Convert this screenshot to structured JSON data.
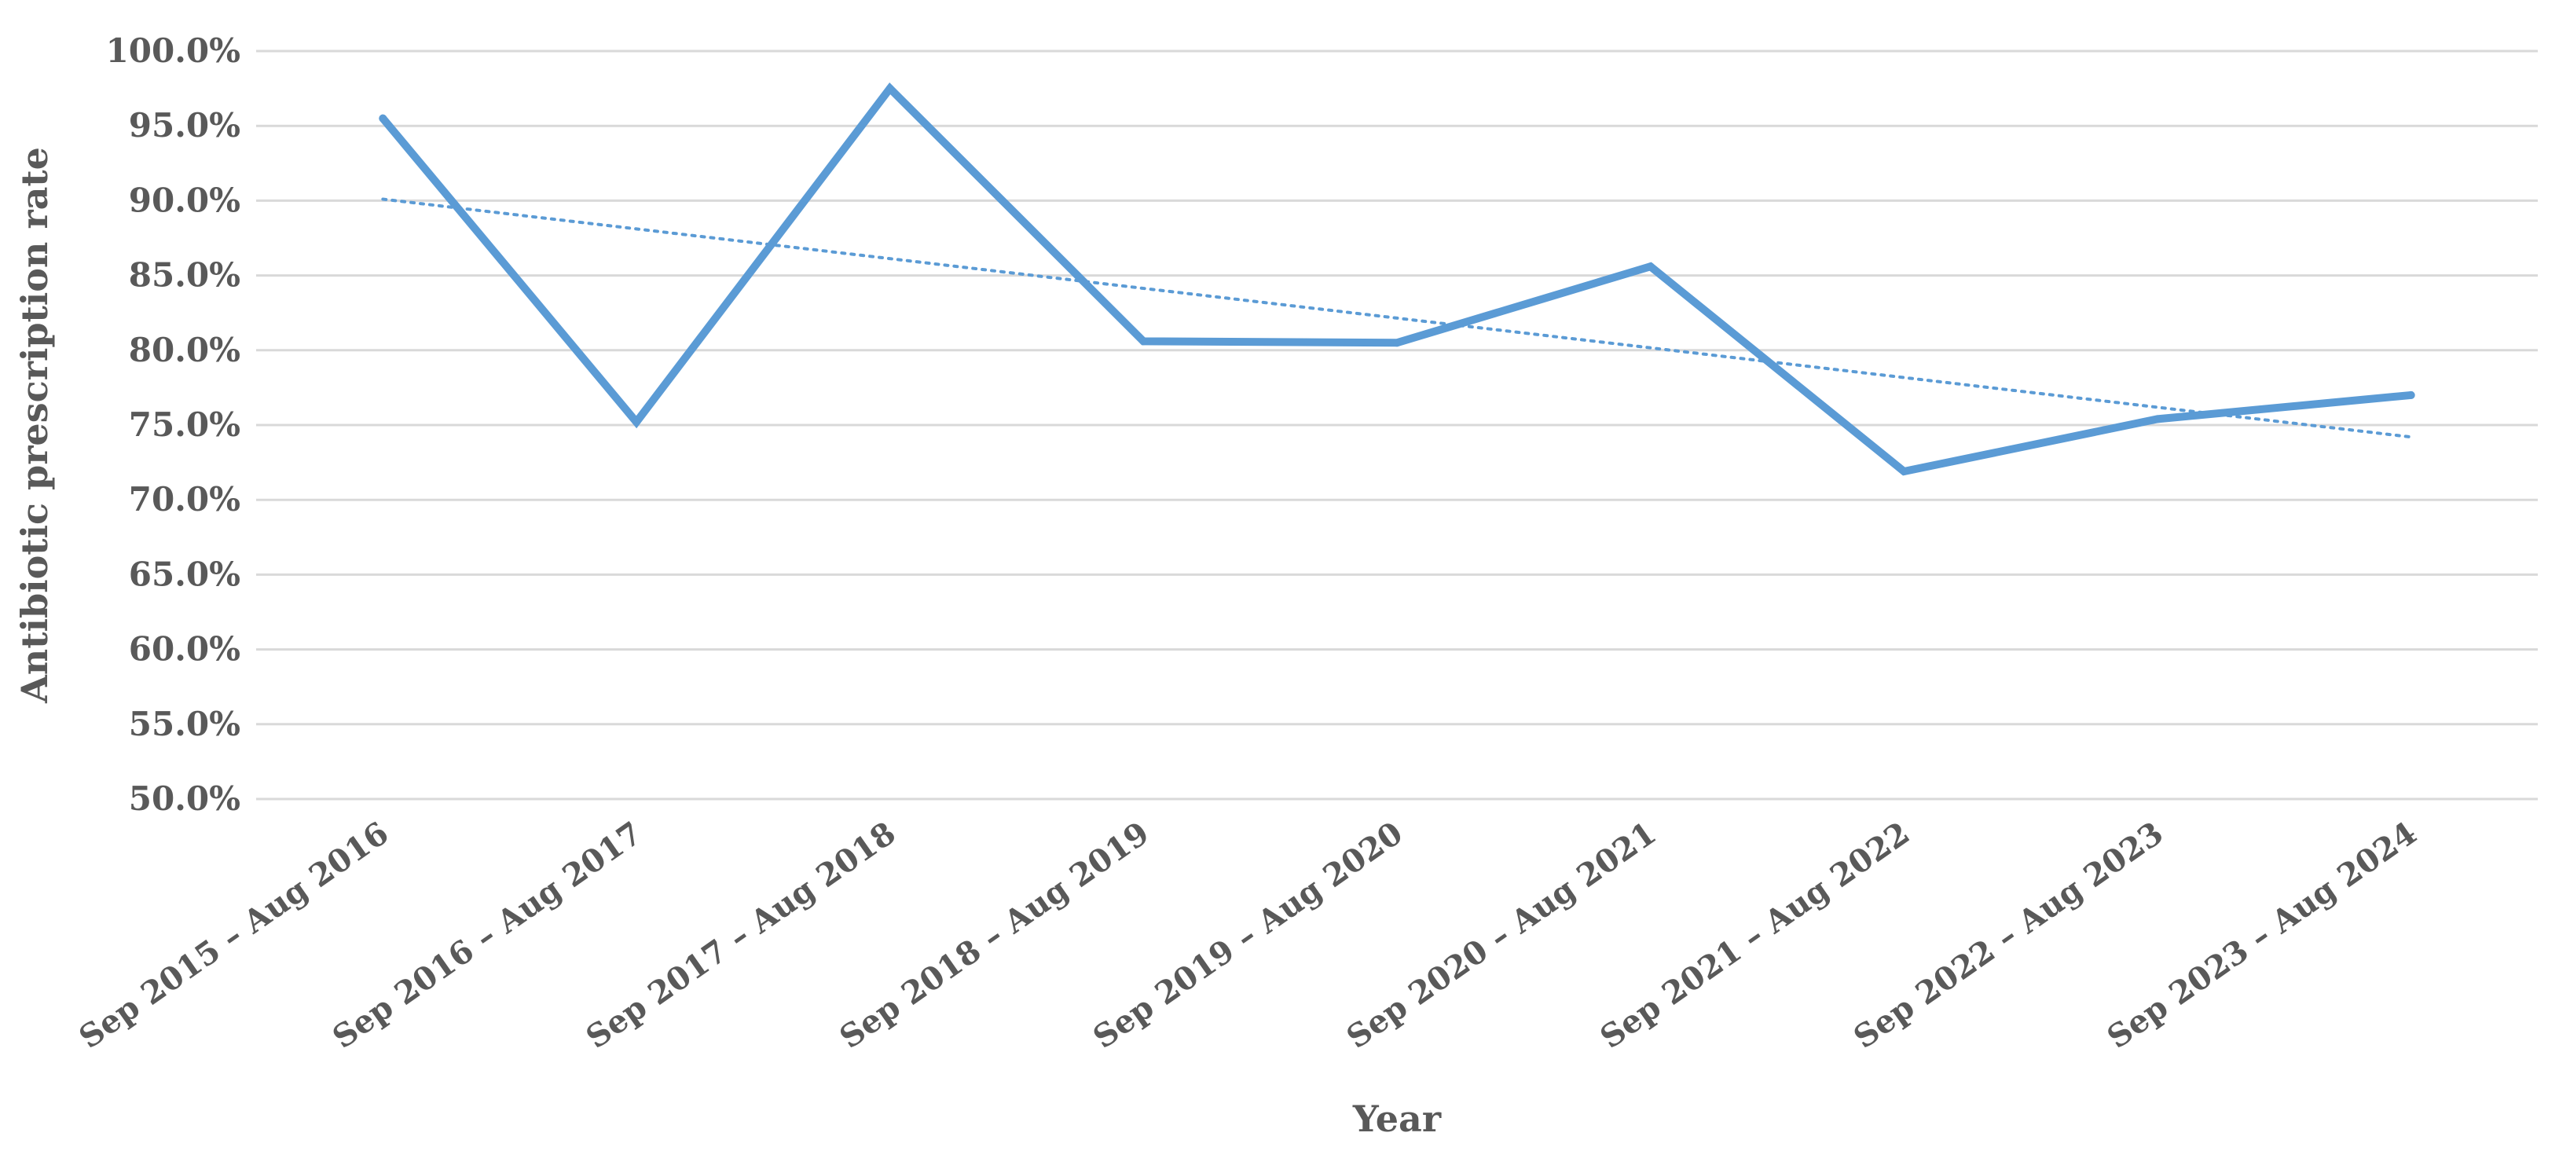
{
  "chart_data": {
    "type": "line",
    "title": "",
    "xlabel": "Year",
    "ylabel": "Antibiotic prescription rate",
    "categories": [
      "Sep 2015 – Aug 2016",
      "Sep 2016 – Aug 2017",
      "Sep 2017 – Aug 2018",
      "Sep 2018 – Aug 2019",
      "Sep 2019 – Aug 2020",
      "Sep 2020 – Aug 2021",
      "Sep 2021 – Aug 2022",
      "Sep 2022 – Aug 2023",
      "Sep 2023 – Aug 2024"
    ],
    "series": [
      {
        "values": [
          95.5,
          75.2,
          97.5,
          80.6,
          80.5,
          85.6,
          71.9,
          75.4,
          77.0
        ],
        "color": "#5b9bd5",
        "style": "solid"
      }
    ],
    "trendline": {
      "type": "linear",
      "start": 90.1,
      "end": 74.2,
      "color": "#5b9bd5",
      "style": "dotted"
    },
    "ylim": [
      50,
      100
    ],
    "yticks": [
      "50.0%",
      "55.0%",
      "60.0%",
      "65.0%",
      "70.0%",
      "75.0%",
      "80.0%",
      "85.0%",
      "90.0%",
      "95.0%",
      "100.0%"
    ],
    "grid": true,
    "legend": "none"
  }
}
